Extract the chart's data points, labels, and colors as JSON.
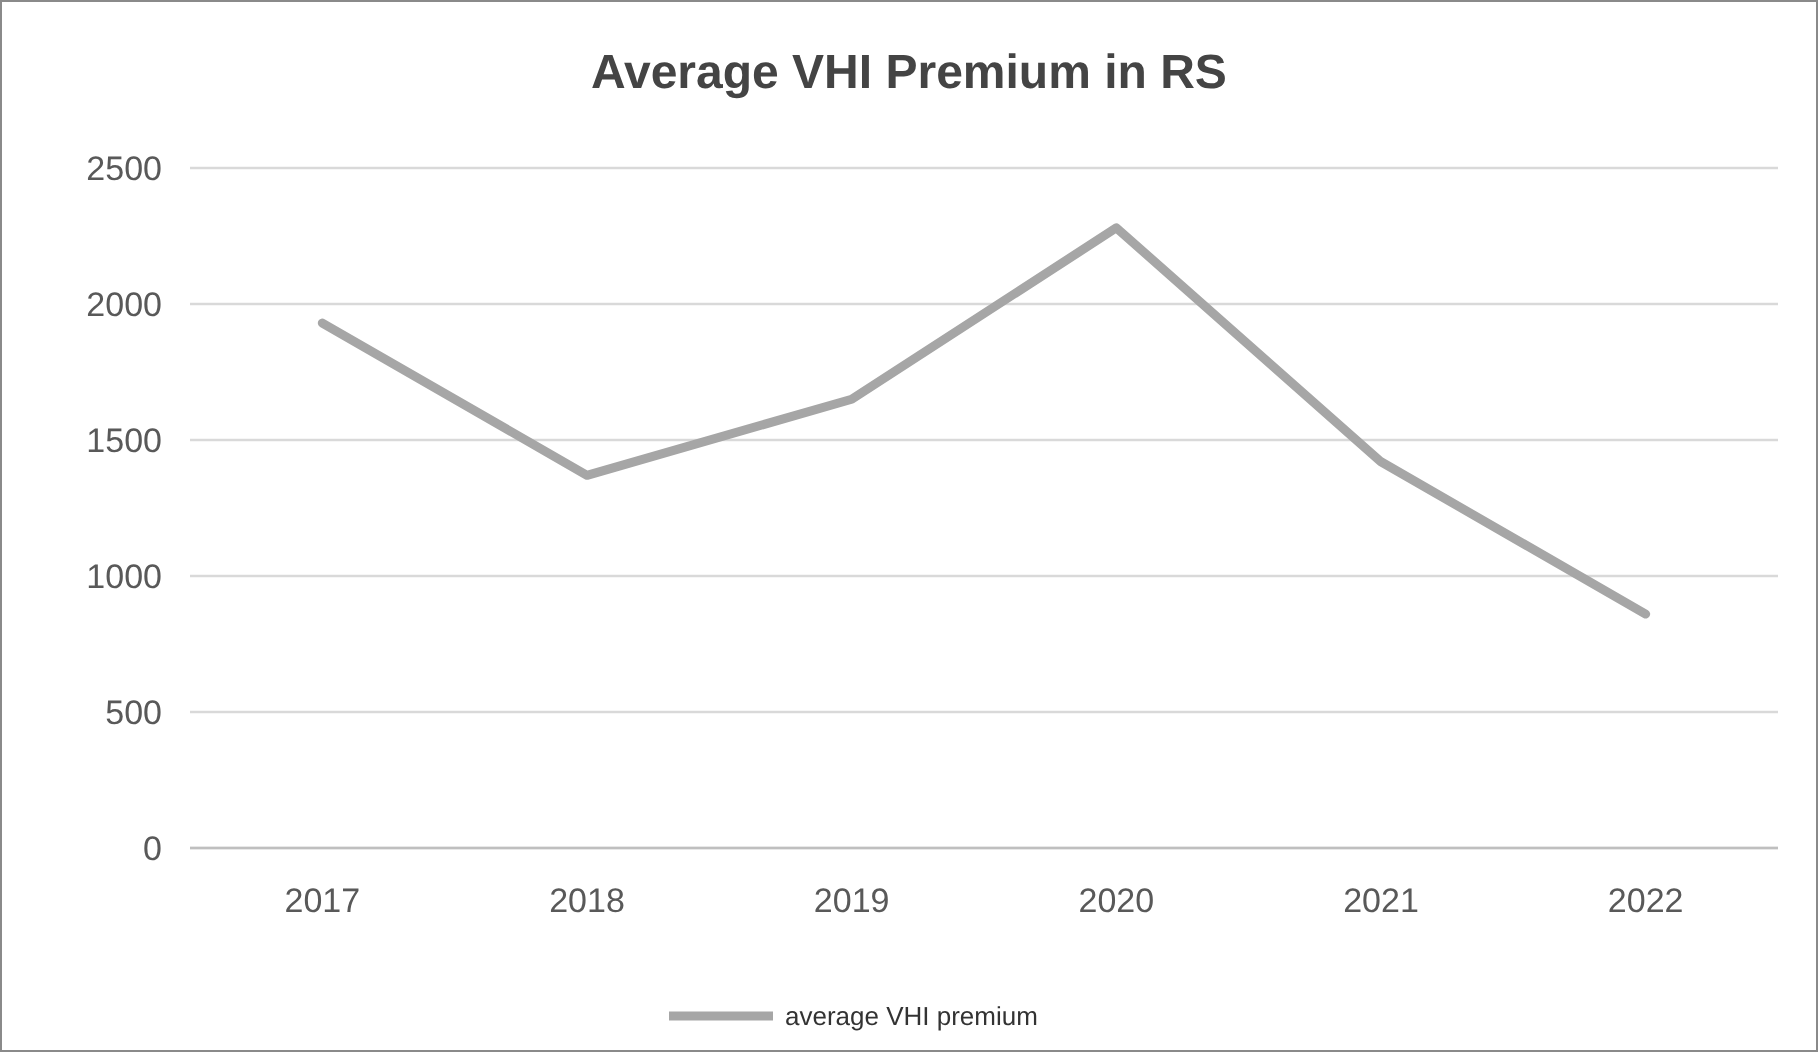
{
  "chart_data": {
    "type": "line",
    "title": "Average VHI Premium in RS",
    "categories": [
      "2017",
      "2018",
      "2019",
      "2020",
      "2021",
      "2022"
    ],
    "series": [
      {
        "name": "average VHI premium",
        "color": "#a6a6a6",
        "values": [
          1930,
          1370,
          1650,
          2280,
          1420,
          860
        ]
      }
    ],
    "ylim": [
      0,
      2500
    ],
    "yticks": [
      0,
      500,
      1000,
      1500,
      2000,
      2500
    ],
    "grid": "y",
    "legend": "bottom",
    "marker": "none",
    "line_style": "solid"
  }
}
